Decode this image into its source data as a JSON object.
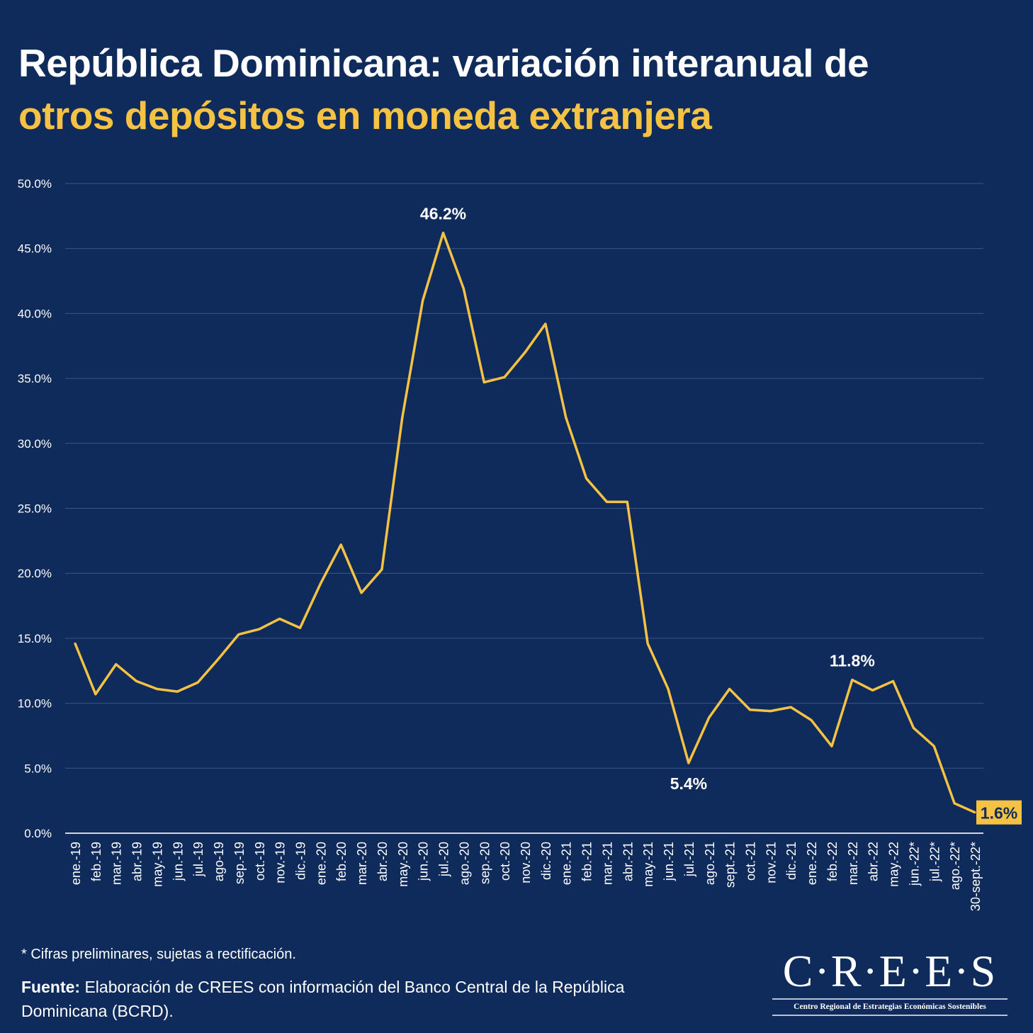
{
  "title": {
    "line1": "República Dominicana: variación interanual de",
    "line2": "otros depósitos en moneda extranjera"
  },
  "colors": {
    "background": "#0f2b5b",
    "line": "#f6c244",
    "accent_text": "#f6c244",
    "text": "#ffffff"
  },
  "chart_data": {
    "type": "line",
    "title": "República Dominicana: variación interanual de otros depósitos en moneda extranjera",
    "xlabel": "",
    "ylabel": "",
    "ylim": [
      0,
      50
    ],
    "yticks": [
      "0.0%",
      "5.0%",
      "10.0%",
      "15.0%",
      "20.0%",
      "25.0%",
      "30.0%",
      "35.0%",
      "40.0%",
      "45.0%",
      "50.0%"
    ],
    "grid": true,
    "legend": "none",
    "categories": [
      "ene.-19",
      "feb.-19",
      "mar.-19",
      "abr.-19",
      "may.-19",
      "jun.-19",
      "jul.-19",
      "ago-19",
      "sep.-19",
      "oct.-19",
      "nov.-19",
      "dic.-19",
      "ene.-20",
      "feb.-20",
      "mar.-20",
      "abr.-20",
      "may.-20",
      "jun.-20",
      "jul.-20",
      "ago.-20",
      "sep.-20",
      "oct.-20",
      "nov.-20",
      "dic.-20",
      "ene.-21",
      "feb.-21",
      "mar.-21",
      "abr.-21",
      "may.-21",
      "jun.-21",
      "jul.-21",
      "ago.-21",
      "sept.-21",
      "oct.-21",
      "nov.-21",
      "dic.-21",
      "ene.-22",
      "feb.-22",
      "mar.-22",
      "abr.-22",
      "may.-22",
      "jun.-22*",
      "jul.-22*",
      "ago.-22*",
      "30-sept.-22*"
    ],
    "values": [
      14.6,
      10.7,
      13.0,
      11.7,
      11.1,
      10.9,
      11.6,
      13.4,
      15.3,
      15.7,
      16.5,
      15.8,
      19.2,
      22.2,
      18.5,
      20.3,
      32.0,
      41.0,
      46.2,
      41.9,
      34.7,
      35.1,
      37.0,
      39.2,
      32.0,
      27.3,
      25.5,
      25.5,
      14.6,
      11.1,
      5.4,
      8.9,
      11.1,
      9.5,
      9.4,
      9.7,
      8.7,
      6.7,
      11.8,
      11.0,
      11.7,
      8.1,
      6.7,
      2.3,
      1.6
    ],
    "annotations": [
      {
        "category": "jul.-20",
        "text": "46.2%",
        "position": "above"
      },
      {
        "category": "jul.-21",
        "text": "5.4%",
        "position": "below"
      },
      {
        "category": "mar.-22",
        "text": "11.8%",
        "position": "above"
      },
      {
        "category": "30-sept.-22*",
        "text": "1.6%",
        "position": "right",
        "highlight": true
      }
    ]
  },
  "footer": {
    "note": "* Cifras preliminares, sujetas a rectificación.",
    "source_label": "Fuente:",
    "source_text": " Elaboración de CREES con información del Banco Central de la República Dominicana (BCRD)."
  },
  "logo": {
    "name": "C·R·E·E·S",
    "subtitle": "Centro Regional de Estrategias Económicas Sostenibles"
  }
}
